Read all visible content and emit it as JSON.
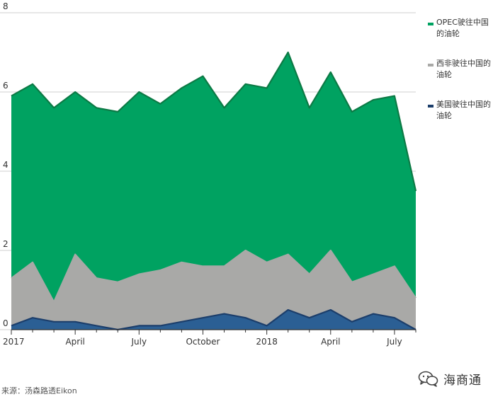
{
  "chart_data": {
    "type": "area",
    "stacked": true,
    "x_tick_labels": [
      "2017",
      "April",
      "July",
      "October",
      "2018",
      "April",
      "July"
    ],
    "y_tick_labels": [
      "0",
      "2",
      "4",
      "6",
      "8"
    ],
    "ylim": [
      0,
      8
    ],
    "grid": "horizontal",
    "legend_position": "right",
    "x": [
      "2017-01",
      "2017-02",
      "2017-03",
      "2017-04",
      "2017-05",
      "2017-06",
      "2017-07",
      "2017-08",
      "2017-09",
      "2017-10",
      "2017-11",
      "2017-12",
      "2018-01",
      "2018-02",
      "2018-03",
      "2018-04",
      "2018-05",
      "2018-06",
      "2018-07",
      "2018-08"
    ],
    "series": [
      {
        "name": "美国驶往中国的油轮",
        "color": "#2b5f94",
        "line_color": "#1c3e6b",
        "values": [
          0.1,
          0.3,
          0.2,
          0.2,
          0.1,
          0.0,
          0.1,
          0.1,
          0.2,
          0.3,
          0.4,
          0.3,
          0.1,
          0.5,
          0.3,
          0.5,
          0.2,
          0.4,
          0.3,
          0.0
        ]
      },
      {
        "name": "西非驶往中国的油轮",
        "color": "#a9a9a7",
        "line_color": "#a9a9a7",
        "values": [
          1.2,
          1.4,
          0.5,
          1.7,
          1.2,
          1.2,
          1.3,
          1.4,
          1.5,
          1.3,
          1.2,
          1.7,
          1.6,
          1.4,
          1.1,
          1.5,
          1.0,
          1.0,
          1.3,
          0.8
        ]
      },
      {
        "name": "OPEC驶往中国的油轮",
        "color": "#00a261",
        "line_color": "#0c7a45",
        "values": [
          4.6,
          4.5,
          4.9,
          4.1,
          4.3,
          4.3,
          4.6,
          4.2,
          4.4,
          4.8,
          4.0,
          4.2,
          4.4,
          5.1,
          4.2,
          4.5,
          4.3,
          4.4,
          4.3,
          2.7
        ]
      }
    ]
  },
  "legend": {
    "items": [
      {
        "label": "OPEC驶往中国的油轮",
        "color": "#00a261"
      },
      {
        "label": "西非驶往中国的油轮",
        "color": "#a9a9a7"
      },
      {
        "label": "美国驶往中国的油轮",
        "color": "#1c3e6b"
      }
    ]
  },
  "footer": {
    "source": "来源：汤森路透Eikon"
  },
  "watermark": {
    "text": "海商通",
    "icon": "wechat-icon"
  }
}
